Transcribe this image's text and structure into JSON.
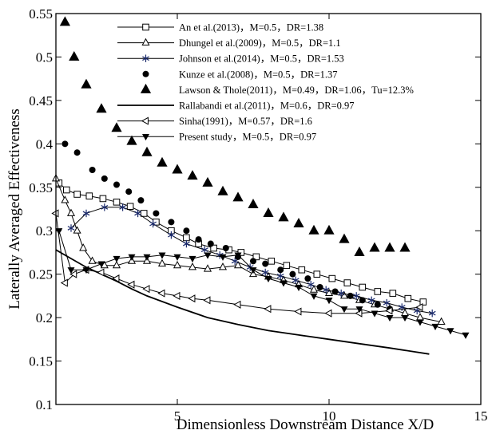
{
  "chart_data": {
    "type": "line",
    "xlabel": "Dimensionless Downstream Distance X/D",
    "ylabel": "Laterally Averaged Effectiveness",
    "xlim": [
      1,
      15
    ],
    "ylim": [
      0.1,
      0.55
    ],
    "xticks": [
      5,
      10,
      15
    ],
    "yticks": [
      0.1,
      0.15,
      0.2,
      0.25,
      0.3,
      0.35,
      0.4,
      0.45,
      0.5,
      0.55
    ],
    "grid": false,
    "legend_position": "top-right",
    "series": [
      {
        "name": "An et al.(2013)，M=0.5，DR=1.38",
        "marker": "square-open",
        "line": "solid",
        "x": [
          1.1,
          1.35,
          1.7,
          2.1,
          2.55,
          3.0,
          3.45,
          3.9,
          4.3,
          4.8,
          5.3,
          5.7,
          6.2,
          6.7,
          7.1,
          7.6,
          8.1,
          8.6,
          9.1,
          9.6,
          10.1,
          10.6,
          11.1,
          11.6,
          12.1,
          12.6,
          13.1
        ],
        "y": [
          0.355,
          0.347,
          0.342,
          0.34,
          0.337,
          0.333,
          0.328,
          0.32,
          0.31,
          0.3,
          0.292,
          0.285,
          0.28,
          0.278,
          0.275,
          0.27,
          0.265,
          0.26,
          0.255,
          0.25,
          0.245,
          0.24,
          0.235,
          0.23,
          0.228,
          0.222,
          0.218
        ]
      },
      {
        "name": "Dhungel et al.(2009)，M=0.5，DR=1.1",
        "marker": "triangle-open",
        "line": "solid",
        "x": [
          1.0,
          1.3,
          1.5,
          1.7,
          1.9,
          2.2,
          2.6,
          3.0,
          3.5,
          4.0,
          4.5,
          5.0,
          5.5,
          6.0,
          6.5,
          7.0,
          7.5,
          8.0,
          8.5,
          9.0,
          9.5,
          10.0,
          10.5,
          11.0,
          11.5,
          12.0,
          12.5,
          13.0,
          13.7
        ],
        "y": [
          0.36,
          0.335,
          0.32,
          0.3,
          0.28,
          0.265,
          0.26,
          0.26,
          0.265,
          0.265,
          0.262,
          0.26,
          0.258,
          0.256,
          0.258,
          0.26,
          0.25,
          0.247,
          0.243,
          0.238,
          0.232,
          0.228,
          0.225,
          0.22,
          0.215,
          0.21,
          0.205,
          0.2,
          0.195
        ]
      },
      {
        "name": "Johnson et al.(2014)，M=0.5，DR=1.53",
        "marker": "star",
        "line": "solid",
        "x": [
          1.5,
          2.0,
          2.6,
          3.2,
          3.7,
          4.2,
          4.8,
          5.3,
          5.9,
          6.4,
          6.9,
          7.4,
          7.9,
          8.4,
          8.9,
          9.4,
          9.9,
          10.4,
          10.9,
          11.4,
          11.9,
          12.4,
          12.9,
          13.4
        ],
        "y": [
          0.303,
          0.32,
          0.327,
          0.327,
          0.32,
          0.308,
          0.295,
          0.285,
          0.278,
          0.272,
          0.265,
          0.258,
          0.252,
          0.248,
          0.243,
          0.238,
          0.232,
          0.228,
          0.225,
          0.22,
          0.217,
          0.212,
          0.208,
          0.205
        ]
      },
      {
        "name": "Kunze et al.(2008)，M=0.5，DR=1.37",
        "marker": "circle-filled",
        "line": "none",
        "x": [
          1.3,
          1.7,
          2.2,
          2.6,
          3.0,
          3.4,
          3.8,
          4.3,
          4.8,
          5.3,
          5.7,
          6.1,
          6.6,
          7.0,
          7.5,
          7.9,
          8.4,
          8.8,
          9.3,
          9.7,
          10.2,
          10.7,
          11.1,
          11.6,
          12.0
        ],
        "y": [
          0.4,
          0.39,
          0.37,
          0.36,
          0.353,
          0.345,
          0.335,
          0.32,
          0.31,
          0.3,
          0.29,
          0.285,
          0.28,
          0.27,
          0.265,
          0.262,
          0.255,
          0.25,
          0.245,
          0.235,
          0.23,
          0.225,
          0.22,
          0.215,
          0.21
        ]
      },
      {
        "name": "Lawson & Thole(2011)，M=0.49，DR=1.06，Tu=12.3%",
        "marker": "triangle-filled",
        "line": "none",
        "x": [
          1.3,
          1.6,
          2.0,
          2.5,
          3.0,
          3.5,
          4.0,
          4.5,
          5.0,
          5.5,
          6.0,
          6.5,
          7.0,
          7.5,
          8.0,
          8.5,
          9.0,
          9.5,
          10.0,
          10.5,
          11.0,
          11.5,
          12.0,
          12.5
        ],
        "y": [
          0.54,
          0.5,
          0.468,
          0.44,
          0.418,
          0.403,
          0.39,
          0.378,
          0.37,
          0.363,
          0.355,
          0.345,
          0.338,
          0.33,
          0.32,
          0.315,
          0.308,
          0.3,
          0.3,
          0.29,
          0.275,
          0.28,
          0.28,
          0.28
        ]
      },
      {
        "name": "Rallabandi et al.(2011)，M=0.6，DR=0.97",
        "marker": "none",
        "line": "solid-thick",
        "x": [
          1.0,
          1.5,
          2.0,
          2.5,
          3.0,
          3.5,
          4.0,
          5.0,
          6.0,
          7.0,
          8.0,
          9.0,
          10.0,
          11.0,
          12.0,
          13.3
        ],
        "y": [
          0.278,
          0.268,
          0.258,
          0.25,
          0.242,
          0.233,
          0.225,
          0.212,
          0.2,
          0.192,
          0.185,
          0.18,
          0.175,
          0.17,
          0.165,
          0.158
        ]
      },
      {
        "name": "Sinha(1991)，M=0.57，DR=1.6",
        "marker": "triangle-left-open",
        "line": "solid",
        "x": [
          1.0,
          1.3,
          1.6,
          2.0,
          2.5,
          3.0,
          3.5,
          4.0,
          4.5,
          5.0,
          5.5,
          6.0,
          7.0,
          8.0,
          9.0,
          10.0,
          11.0,
          12.0,
          13.0
        ],
        "y": [
          0.32,
          0.24,
          0.25,
          0.255,
          0.252,
          0.245,
          0.238,
          0.233,
          0.228,
          0.225,
          0.222,
          0.22,
          0.215,
          0.21,
          0.207,
          0.205,
          0.205,
          0.208,
          0.212
        ]
      },
      {
        "name": "Present study，M=0.5，DR=0.97",
        "marker": "triangle-down-filled",
        "line": "solid",
        "x": [
          1.1,
          1.5,
          2.0,
          2.5,
          3.0,
          3.5,
          4.0,
          4.5,
          5.0,
          5.5,
          6.0,
          6.5,
          7.0,
          7.5,
          8.0,
          8.5,
          9.0,
          9.5,
          10.0,
          10.5,
          11.0,
          11.5,
          12.0,
          12.5,
          13.0,
          13.5,
          14.0,
          14.5
        ],
        "y": [
          0.3,
          0.255,
          0.255,
          0.262,
          0.268,
          0.27,
          0.27,
          0.272,
          0.27,
          0.268,
          0.272,
          0.27,
          0.272,
          0.255,
          0.245,
          0.24,
          0.235,
          0.225,
          0.22,
          0.21,
          0.21,
          0.205,
          0.2,
          0.2,
          0.195,
          0.19,
          0.185,
          0.18
        ]
      }
    ]
  }
}
